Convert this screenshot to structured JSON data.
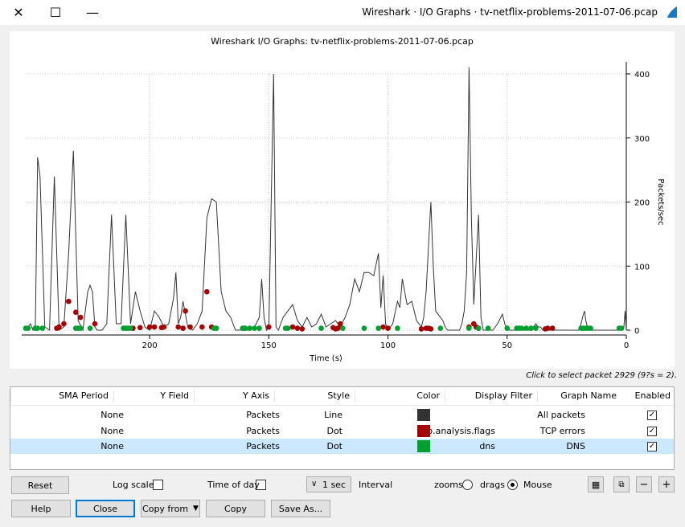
{
  "window": {
    "title": "Wireshark · I/O Graphs · tv-netflix-problems-2011-07-06.pcap"
  },
  "chart_data": {
    "type": "line",
    "title": "Wireshark I/O Graphs: tv-netflix-problems-2011-07-06.pcap",
    "xlabel": "Time (s)",
    "ylabel": "Packets/sec",
    "x_reversed": true,
    "xlim": [
      0,
      252
    ],
    "ylim": [
      0,
      400
    ],
    "x_ticks": [
      0,
      50,
      100,
      150,
      200
    ],
    "y_ticks": [
      0,
      100,
      200,
      300,
      400
    ],
    "grid": true,
    "series": [
      {
        "name": "All packets",
        "style": "line",
        "x": [
          0,
          0.5,
          1,
          2,
          16,
          17,
          17.5,
          18,
          19,
          20,
          35,
          36,
          37,
          38,
          39,
          40,
          50,
          51,
          52,
          54,
          55,
          56,
          60,
          61,
          62,
          64,
          65,
          66,
          67,
          68,
          69,
          70,
          71,
          72,
          75,
          76,
          77,
          78,
          80,
          81,
          82,
          84,
          85,
          86,
          88,
          90,
          92,
          94,
          95,
          96,
          98,
          100,
          101,
          102,
          103,
          104,
          106,
          108,
          110,
          112,
          114,
          116,
          118,
          120,
          122,
          124,
          126,
          128,
          130,
          132,
          134,
          136,
          138,
          140,
          142,
          144,
          145,
          146,
          147,
          148,
          150,
          151,
          152,
          153,
          154,
          156,
          158,
          160,
          162,
          164,
          166,
          168,
          170,
          172,
          174,
          176,
          178,
          180,
          182,
          184,
          186,
          187,
          188,
          189,
          190,
          192,
          194,
          196,
          198,
          200,
          202,
          204,
          206,
          208,
          210,
          212,
          214,
          216,
          218,
          220,
          222,
          223,
          224,
          225,
          226,
          228,
          230,
          232,
          234,
          236,
          238,
          240,
          242,
          244,
          246,
          247,
          248,
          249,
          250,
          252
        ],
        "y": [
          0,
          30,
          5,
          0,
          0,
          15,
          30,
          25,
          10,
          0,
          0,
          5,
          5,
          10,
          5,
          0,
          0,
          10,
          25,
          10,
          5,
          0,
          0,
          20,
          180,
          40,
          175,
          410,
          90,
          30,
          10,
          0,
          0,
          0,
          0,
          5,
          15,
          20,
          30,
          100,
          200,
          60,
          20,
          5,
          15,
          45,
          40,
          80,
          35,
          45,
          10,
          0,
          10,
          85,
          35,
          120,
          85,
          90,
          90,
          60,
          80,
          40,
          20,
          5,
          15,
          10,
          5,
          25,
          10,
          5,
          20,
          5,
          15,
          40,
          30,
          20,
          10,
          0,
          5,
          400,
          5,
          0,
          20,
          80,
          20,
          5,
          0,
          0,
          0,
          0,
          20,
          30,
          60,
          200,
          205,
          175,
          30,
          10,
          0,
          5,
          45,
          20,
          10,
          90,
          50,
          10,
          5,
          20,
          30,
          0,
          5,
          30,
          60,
          10,
          180,
          10,
          10,
          180,
          10,
          0,
          0,
          5,
          60,
          70,
          60,
          0,
          15,
          280,
          120,
          5,
          0,
          240,
          0,
          5,
          240,
          270,
          0,
          0,
          10,
          0
        ]
      },
      {
        "name": "TCP errors",
        "style": "dot",
        "x": [
          31,
          33,
          34,
          62,
          63,
          64,
          66,
          82,
          83,
          84,
          86,
          100,
          102,
          120,
          121,
          122,
          123,
          136,
          138,
          140,
          150,
          160,
          174,
          176,
          178,
          183,
          185,
          186,
          188,
          194,
          195,
          198,
          200,
          204,
          207,
          223,
          229,
          231,
          234,
          236,
          238,
          239
        ],
        "y": [
          3,
          3,
          2,
          3,
          5,
          10,
          5,
          2,
          3,
          3,
          2,
          3,
          5,
          10,
          3,
          2,
          4,
          2,
          3,
          5,
          5,
          3,
          5,
          60,
          5,
          5,
          30,
          3,
          5,
          5,
          4,
          5,
          5,
          4,
          3,
          10,
          20,
          28,
          45,
          10,
          5,
          3
        ]
      },
      {
        "name": "DNS",
        "style": "dot",
        "x": [
          2,
          3,
          15,
          16,
          17,
          18,
          19,
          38,
          40,
          42,
          44,
          45,
          46,
          50,
          58,
          62,
          66,
          78,
          96,
          104,
          110,
          119,
          128,
          142,
          143,
          154,
          156,
          158,
          160,
          161,
          172,
          173,
          208,
          209,
          210,
          211,
          225,
          229,
          230,
          231,
          245,
          247,
          248,
          251,
          252
        ],
        "y": [
          3,
          3,
          3,
          3,
          3,
          3,
          3,
          3,
          3,
          3,
          3,
          3,
          3,
          3,
          3,
          3,
          3,
          3,
          3,
          3,
          3,
          3,
          3,
          3,
          3,
          3,
          3,
          3,
          3,
          3,
          3,
          3,
          3,
          3,
          3,
          3,
          3,
          3,
          3,
          3,
          3,
          3,
          3,
          3,
          3
        ]
      }
    ]
  },
  "status_text": "Click to select packet 2929 (9?s = 2).",
  "table": {
    "headers": [
      "Enabled",
      "Graph Name",
      "Display Filter",
      "Color",
      "Style",
      "Y Axis",
      "Y Field",
      "SMA Period"
    ],
    "rows": [
      {
        "enabled": true,
        "name": "All packets",
        "filter": "",
        "color": "#333333",
        "style": "Line",
        "y_axis": "Packets",
        "y_field": "",
        "sma": "None",
        "selected": false
      },
      {
        "enabled": true,
        "name": "TCP errors",
        "filter": "tcp.analysis.flags",
        "color": "#a40000",
        "style": "Dot",
        "y_axis": "Packets",
        "y_field": "",
        "sma": "None",
        "selected": false
      },
      {
        "enabled": true,
        "name": "DNS",
        "filter": "dns",
        "color": "#00a030",
        "style": "Dot",
        "y_axis": "Packets",
        "y_field": "",
        "sma": "None",
        "selected": true
      }
    ]
  },
  "controls": {
    "mouse_label": "Mouse",
    "drags_label": "drags",
    "zooms_label": "zooms",
    "interval_label": "Interval",
    "interval_value": "1 sec",
    "time_of_day_label": "Time of day",
    "log_scale_label": "Log scale",
    "reset_label": "Reset"
  },
  "buttons": {
    "save_as": "Save As...",
    "copy": "Copy",
    "copy_from": "Copy from",
    "close": "Close",
    "help": "Help"
  },
  "colors": {
    "accent": "#0078d7",
    "selection": "#cce8ff"
  }
}
